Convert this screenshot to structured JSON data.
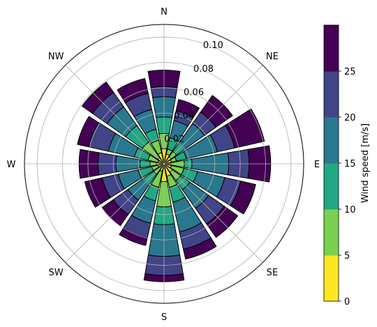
{
  "chart_data": {
    "type": "polar-stacked-bar",
    "title": "",
    "directions": [
      "N",
      "NE",
      "E",
      "SE",
      "S",
      "SW",
      "W",
      "NW"
    ],
    "sectors_deg": [
      0,
      22.5,
      45,
      67.5,
      90,
      112.5,
      135,
      157.5,
      180,
      202.5,
      225,
      247.5,
      270,
      292.5,
      315,
      337.5
    ],
    "radial_ticks": [
      "0.02",
      "0.04",
      "0.06",
      "0.08",
      "0.10"
    ],
    "rlim": [
      0,
      0.11
    ],
    "grid": true,
    "series": [
      {
        "name": "0-5",
        "color": "#fde725",
        "values": [
          0.012,
          0.008,
          0.007,
          0.006,
          0.005,
          0.006,
          0.008,
          0.01,
          0.014,
          0.006,
          0.004,
          0.005,
          0.006,
          0.005,
          0.006,
          0.009
        ]
      },
      {
        "name": "5-10",
        "color": "#7ad151",
        "values": [
          0.012,
          0.004,
          0.005,
          0.004,
          0.011,
          0.01,
          0.008,
          0.009,
          0.02,
          0.013,
          0.006,
          0.005,
          0.005,
          0.008,
          0.015,
          0.01
        ]
      },
      {
        "name": "10-15",
        "color": "#22a884",
        "values": [
          0.013,
          0.009,
          0.008,
          0.008,
          0.006,
          0.011,
          0.009,
          0.012,
          0.014,
          0.011,
          0.01,
          0.011,
          0.008,
          0.011,
          0.016,
          0.009
        ]
      },
      {
        "name": "15-20",
        "color": "#2a788e",
        "values": [
          0.016,
          0.014,
          0.019,
          0.025,
          0.029,
          0.022,
          0.018,
          0.024,
          0.025,
          0.018,
          0.015,
          0.016,
          0.019,
          0.021,
          0.018,
          0.016
        ]
      },
      {
        "name": "20-25",
        "color": "#414487",
        "values": [
          0.008,
          0.008,
          0.011,
          0.014,
          0.016,
          0.013,
          0.015,
          0.014,
          0.015,
          0.012,
          0.014,
          0.013,
          0.014,
          0.016,
          0.014,
          0.013
        ]
      },
      {
        "name": "25+",
        "color": "#440154",
        "values": [
          0.013,
          0.009,
          0.016,
          0.024,
          0.017,
          0.012,
          0.013,
          0.008,
          0.005,
          0.006,
          0.011,
          0.014,
          0.015,
          0.009,
          0.01,
          0.012
        ]
      }
    ],
    "colorbar": {
      "label": "Wind speed [m/s]",
      "ticks": [
        "0",
        "5",
        "10",
        "15",
        "20",
        "25"
      ],
      "colors": [
        "#fde725",
        "#7ad151",
        "#22a884",
        "#2a788e",
        "#414487",
        "#440154"
      ]
    },
    "style": {
      "bar_edge_color": "#000000",
      "grid_color": "#b0b0b0"
    }
  }
}
